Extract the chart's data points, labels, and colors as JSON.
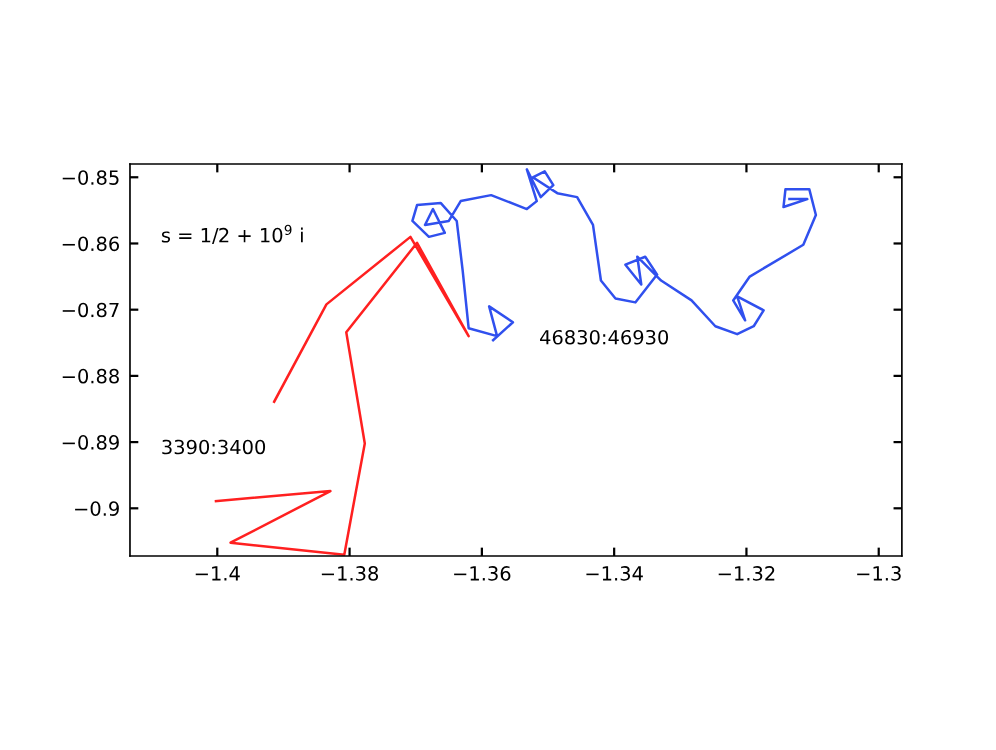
{
  "chart_data": {
    "type": "line",
    "series": [
      {
        "color": "#ff2020",
        "x": [
          -1.3914,
          -1.3835,
          -1.3708,
          -1.362,
          -1.3698,
          -1.3805,
          -1.3777,
          -1.3808,
          -1.398,
          -1.3829,
          -1.4002
        ],
        "values": [
          -0.8839,
          -0.8692,
          -0.859,
          -0.874,
          -0.8599,
          -0.8734,
          -0.8902,
          -0.907,
          -0.9052,
          -0.8974,
          -0.8989
        ]
      },
      {
        "color": "#3050ee",
        "x": [
          -1.3583,
          -1.3553,
          -1.3589,
          -1.3577,
          -1.362,
          -1.3629,
          -1.3638,
          -1.3662,
          -1.3698,
          -1.3705,
          -1.368,
          -1.3656,
          -1.3674,
          -1.3686,
          -1.365,
          -1.3632,
          -1.3586,
          -1.3532,
          -1.3517,
          -1.3532,
          -1.3511,
          -1.3492,
          -1.3505,
          -1.3523,
          -1.3486,
          -1.3456,
          -1.3432,
          -1.342,
          -1.3398,
          -1.3368,
          -1.3335,
          -1.3353,
          -1.3383,
          -1.3359,
          -1.3365,
          -1.3329,
          -1.3283,
          -1.3247,
          -1.3214,
          -1.3189,
          -1.3174,
          -1.3214,
          -1.3202,
          -1.322,
          -1.3195,
          -1.3114,
          -1.3095,
          -1.3105,
          -1.3141,
          -1.3144,
          -1.3108,
          -1.3135
        ],
        "values": [
          -0.8746,
          -0.8719,
          -0.8695,
          -0.874,
          -0.8728,
          -0.8641,
          -0.8566,
          -0.8539,
          -0.8542,
          -0.8566,
          -0.859,
          -0.8584,
          -0.8548,
          -0.8572,
          -0.8566,
          -0.8536,
          -0.8527,
          -0.8548,
          -0.8536,
          -0.8488,
          -0.853,
          -0.8512,
          -0.8491,
          -0.85,
          -0.8524,
          -0.853,
          -0.8572,
          -0.8656,
          -0.8683,
          -0.8689,
          -0.8647,
          -0.862,
          -0.8632,
          -0.8662,
          -0.862,
          -0.8656,
          -0.8686,
          -0.8725,
          -0.8737,
          -0.8725,
          -0.8701,
          -0.868,
          -0.8716,
          -0.8686,
          -0.865,
          -0.8602,
          -0.8557,
          -0.8518,
          -0.8518,
          -0.8545,
          -0.8533,
          -0.8533
        ]
      }
    ],
    "xlim": [
      -1.4132,
      -1.2965
    ],
    "ylim": [
      -0.9072,
      -0.848
    ],
    "xticks": [
      {
        "value": -1.4,
        "label": "−1.4"
      },
      {
        "value": -1.38,
        "label": "−1.38"
      },
      {
        "value": -1.36,
        "label": "−1.36"
      },
      {
        "value": -1.34,
        "label": "−1.34"
      },
      {
        "value": -1.32,
        "label": "−1.32"
      },
      {
        "value": -1.3,
        "label": "−1.3"
      }
    ],
    "yticks": [
      {
        "value": -0.9,
        "label": "−0.9"
      },
      {
        "value": -0.89,
        "label": "−0.89"
      },
      {
        "value": -0.88,
        "label": "−0.88"
      },
      {
        "value": -0.87,
        "label": "−0.87"
      },
      {
        "value": -0.86,
        "label": "−0.86"
      },
      {
        "value": -0.85,
        "label": "−0.85"
      }
    ],
    "annotations": [
      "s = 1/2 + 10$^{9}$ i",
      "3390:3400",
      "46830:46930"
    ],
    "grid": false,
    "legend": false,
    "marker": "none",
    "line_style": "solid"
  }
}
